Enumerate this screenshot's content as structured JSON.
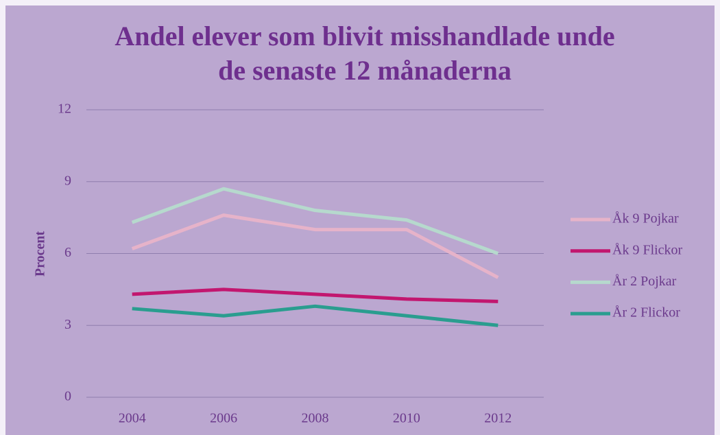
{
  "chart_data": {
    "type": "line",
    "title": [
      "Andel elever som blivit misshandlade unde",
      "de senaste 12 månaderna"
    ],
    "y_label": "Procent",
    "categories": [
      "2004",
      "2006",
      "2008",
      "2010",
      "2012"
    ],
    "series": [
      {
        "name": "Åk 9 Pojkar",
        "color": "#e6b3c9",
        "values": [
          6.2,
          7.6,
          7.0,
          7.0,
          5.0
        ]
      },
      {
        "name": "Åk 9 Flickor",
        "color": "#c2176f",
        "values": [
          4.3,
          4.5,
          4.3,
          4.1,
          4.0
        ]
      },
      {
        "name": "År 2 Pojkar",
        "color": "#b6d9cd",
        "values": [
          7.3,
          8.7,
          7.8,
          7.4,
          6.0
        ]
      },
      {
        "name": "År 2 Flickor",
        "color": "#2a9d8f",
        "values": [
          3.7,
          3.4,
          3.8,
          3.4,
          3.0
        ]
      }
    ],
    "ylim": [
      0,
      12
    ],
    "yticks": [
      0,
      3,
      6,
      9,
      12
    ],
    "grid": true,
    "legend": "right"
  }
}
